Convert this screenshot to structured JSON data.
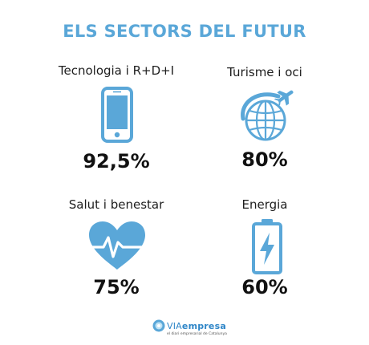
{
  "title": "ELS SECTORS DEL FUTUR",
  "colors": {
    "accent": "#5aa7d8",
    "text": "#111111"
  },
  "sectors": [
    {
      "label": "Tecnologia i R+D+I",
      "value": "92,5%",
      "icon": "smartphone-icon"
    },
    {
      "label": "Turisme i oci",
      "value": "80%",
      "icon": "globe-airplane-icon"
    },
    {
      "label": "Salut i benestar",
      "value": "75%",
      "icon": "heart-pulse-icon"
    },
    {
      "label": "Energia",
      "value": "60%",
      "icon": "battery-bolt-icon"
    }
  ],
  "logo": {
    "brand_prefix": "VIA",
    "brand_suffix": "empresa",
    "tagline": "el diari empresarial de Catalunya"
  }
}
